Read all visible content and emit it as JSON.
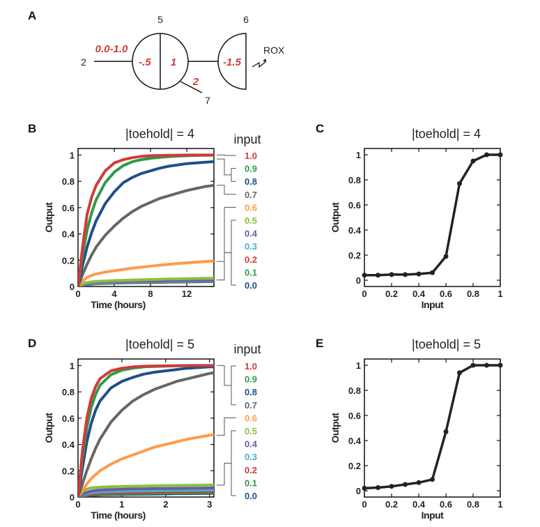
{
  "panels": {
    "A": "A",
    "B": "B",
    "C": "C",
    "D": "D",
    "E": "E"
  },
  "diagram": {
    "node_5": "5",
    "node_6": "6",
    "node_2": "2",
    "node_7": "7",
    "input_range": "0.0-1.0",
    "left_half": "-.5",
    "right_half": "1",
    "branch_weight": "2",
    "threshold": "-1.5",
    "reporter": "ROX"
  },
  "legend": {
    "title": "input",
    "items": [
      {
        "label": "1.0",
        "color": "#d23a3a"
      },
      {
        "label": "0.9",
        "color": "#2e9a4a"
      },
      {
        "label": "0.8",
        "color": "#1f4e8c"
      },
      {
        "label": "0.7",
        "color": "#666666"
      },
      {
        "label": "0.6",
        "color": "#ff9a4a"
      },
      {
        "label": "0.5",
        "color": "#8cbf3f"
      },
      {
        "label": "0.4",
        "color": "#6a5aa8"
      },
      {
        "label": "0.3",
        "color": "#3fb3c9"
      },
      {
        "label": "0.2",
        "color": "#d23a3a"
      },
      {
        "label": "0.1",
        "color": "#2e9a4a"
      },
      {
        "label": "0.0",
        "color": "#1f4e8c"
      }
    ]
  },
  "chart_data": [
    {
      "id": "B",
      "type": "line",
      "title": "|toehold| = 4",
      "xlabel": "Time (hours)",
      "ylabel": "Output",
      "xlim": [
        0,
        15
      ],
      "ylim": [
        0,
        1.05
      ],
      "xticks": [
        0,
        4,
        8,
        12
      ],
      "xtick_labels": [
        "0",
        "4",
        "8",
        "12"
      ],
      "yticks": [
        0,
        0.2,
        0.4,
        0.6,
        0.8,
        1
      ],
      "ytick_labels": [
        "0",
        "0.2",
        "0.4",
        "0.6",
        "0.8",
        "1"
      ],
      "x": [
        0,
        0.5,
        1,
        1.5,
        2,
        3,
        4,
        5,
        6,
        7,
        8,
        9,
        10,
        11,
        12,
        13,
        14,
        15
      ],
      "series": [
        {
          "name": "1.0",
          "color": "#d23a3a",
          "values": [
            0,
            0.3,
            0.55,
            0.68,
            0.77,
            0.88,
            0.94,
            0.965,
            0.98,
            0.99,
            0.995,
            0.997,
            0.998,
            0.999,
            1.0,
            1.0,
            1.0,
            1.0
          ]
        },
        {
          "name": "0.9",
          "color": "#2e9a4a",
          "values": [
            0,
            0.24,
            0.43,
            0.56,
            0.66,
            0.79,
            0.87,
            0.92,
            0.95,
            0.965,
            0.975,
            0.982,
            0.988,
            0.992,
            0.995,
            0.997,
            0.998,
            0.999
          ]
        },
        {
          "name": "0.8",
          "color": "#1f4e8c",
          "values": [
            0,
            0.16,
            0.3,
            0.41,
            0.5,
            0.63,
            0.72,
            0.79,
            0.83,
            0.86,
            0.88,
            0.9,
            0.915,
            0.925,
            0.935,
            0.94,
            0.945,
            0.95
          ]
        },
        {
          "name": "0.7",
          "color": "#666666",
          "values": [
            0,
            0.09,
            0.17,
            0.24,
            0.3,
            0.39,
            0.46,
            0.52,
            0.57,
            0.61,
            0.64,
            0.67,
            0.69,
            0.71,
            0.73,
            0.745,
            0.76,
            0.77
          ]
        },
        {
          "name": "0.6",
          "color": "#ff9a4a",
          "values": [
            0,
            0.04,
            0.07,
            0.085,
            0.095,
            0.11,
            0.12,
            0.13,
            0.14,
            0.147,
            0.155,
            0.162,
            0.168,
            0.175,
            0.18,
            0.185,
            0.19,
            0.195
          ]
        },
        {
          "name": "0.5",
          "color": "#8cbf3f",
          "values": [
            0,
            0.02,
            0.03,
            0.035,
            0.038,
            0.042,
            0.045,
            0.047,
            0.049,
            0.051,
            0.053,
            0.055,
            0.057,
            0.058,
            0.06,
            0.061,
            0.062,
            0.063
          ]
        },
        {
          "name": "0.4",
          "color": "#6a5aa8",
          "values": [
            0,
            0.015,
            0.025,
            0.03,
            0.033,
            0.036,
            0.038,
            0.04,
            0.041,
            0.042,
            0.043,
            0.044,
            0.045,
            0.046,
            0.047,
            0.048,
            0.049,
            0.05
          ]
        },
        {
          "name": "0.3",
          "color": "#3fb3c9",
          "values": [
            0,
            0.012,
            0.02,
            0.025,
            0.028,
            0.031,
            0.033,
            0.035,
            0.036,
            0.037,
            0.038,
            0.039,
            0.04,
            0.041,
            0.042,
            0.043,
            0.044,
            0.045
          ]
        },
        {
          "name": "0.2",
          "color": "#d23a3a",
          "values": [
            0,
            0.01,
            0.018,
            0.022,
            0.025,
            0.028,
            0.03,
            0.032,
            0.033,
            0.034,
            0.035,
            0.036,
            0.037,
            0.038,
            0.039,
            0.04,
            0.041,
            0.042
          ]
        },
        {
          "name": "0.1",
          "color": "#2e9a4a",
          "values": [
            0,
            0.01,
            0.016,
            0.02,
            0.023,
            0.026,
            0.028,
            0.03,
            0.031,
            0.032,
            0.033,
            0.034,
            0.035,
            0.036,
            0.037,
            0.038,
            0.039,
            0.04
          ]
        },
        {
          "name": "0.0",
          "color": "#1f4e8c",
          "values": [
            0,
            0.008,
            0.014,
            0.018,
            0.021,
            0.024,
            0.026,
            0.028,
            0.029,
            0.03,
            0.031,
            0.032,
            0.033,
            0.034,
            0.035,
            0.036,
            0.037,
            0.038
          ]
        }
      ]
    },
    {
      "id": "C",
      "type": "line",
      "title": "|toehold| = 4",
      "xlabel": "Input",
      "ylabel": "Output",
      "xlim": [
        0,
        1
      ],
      "ylim": [
        -0.05,
        1.05
      ],
      "xticks": [
        0,
        0.2,
        0.4,
        0.6,
        0.8,
        1
      ],
      "xtick_labels": [
        "0",
        "0.2",
        "0.4",
        "0.6",
        "0.8",
        "1"
      ],
      "yticks": [
        0,
        0.2,
        0.4,
        0.6,
        0.8,
        1
      ],
      "ytick_labels": [
        "0",
        "0.2",
        "0.4",
        "0.6",
        "0.8",
        "1"
      ],
      "x": [
        0,
        0.1,
        0.2,
        0.3,
        0.4,
        0.5,
        0.6,
        0.7,
        0.8,
        0.9,
        1.0
      ],
      "values": [
        0.04,
        0.04,
        0.045,
        0.045,
        0.05,
        0.06,
        0.19,
        0.77,
        0.95,
        1.0,
        1.0
      ]
    },
    {
      "id": "D",
      "type": "line",
      "title": "|toehold| = 5",
      "xlabel": "Time (hours)",
      "ylabel": "Output",
      "xlim": [
        0,
        3.1
      ],
      "ylim": [
        0,
        1.05
      ],
      "xticks": [
        0,
        1,
        2,
        3
      ],
      "xtick_labels": [
        "0",
        "1",
        "2",
        "3"
      ],
      "yticks": [
        0,
        0.2,
        0.4,
        0.6,
        0.8,
        1
      ],
      "ytick_labels": [
        "0",
        "0.2",
        "0.4",
        "0.6",
        "0.8",
        "1"
      ],
      "x": [
        0,
        0.1,
        0.2,
        0.3,
        0.4,
        0.5,
        0.75,
        1,
        1.25,
        1.5,
        1.75,
        2,
        2.25,
        2.5,
        2.75,
        3,
        3.1
      ],
      "series": [
        {
          "name": "1.0",
          "color": "#d23a3a",
          "values": [
            0,
            0.35,
            0.6,
            0.75,
            0.84,
            0.9,
            0.96,
            0.98,
            0.99,
            0.995,
            0.997,
            0.998,
            0.999,
            1.0,
            1.0,
            1.0,
            1.0
          ]
        },
        {
          "name": "0.9",
          "color": "#2e9a4a",
          "values": [
            0,
            0.3,
            0.53,
            0.68,
            0.78,
            0.85,
            0.93,
            0.965,
            0.98,
            0.99,
            0.994,
            0.996,
            0.998,
            0.999,
            1.0,
            1.0,
            1.0
          ]
        },
        {
          "name": "0.8",
          "color": "#1f4e8c",
          "values": [
            0,
            0.22,
            0.42,
            0.56,
            0.66,
            0.73,
            0.83,
            0.88,
            0.91,
            0.935,
            0.95,
            0.96,
            0.97,
            0.98,
            0.985,
            0.99,
            0.99
          ]
        },
        {
          "name": "0.7",
          "color": "#666666",
          "values": [
            0,
            0.1,
            0.2,
            0.29,
            0.37,
            0.44,
            0.57,
            0.66,
            0.73,
            0.78,
            0.82,
            0.85,
            0.88,
            0.9,
            0.92,
            0.94,
            0.945
          ]
        },
        {
          "name": "0.6",
          "color": "#ff9a4a",
          "values": [
            0,
            0.05,
            0.1,
            0.14,
            0.17,
            0.2,
            0.25,
            0.29,
            0.32,
            0.35,
            0.38,
            0.4,
            0.42,
            0.44,
            0.455,
            0.47,
            0.475
          ]
        },
        {
          "name": "0.5",
          "color": "#8cbf3f",
          "values": [
            0,
            0.04,
            0.06,
            0.07,
            0.073,
            0.075,
            0.078,
            0.08,
            0.082,
            0.084,
            0.085,
            0.087,
            0.088,
            0.089,
            0.09,
            0.091,
            0.092
          ]
        },
        {
          "name": "0.4",
          "color": "#6a5aa8",
          "values": [
            0,
            0.02,
            0.035,
            0.045,
            0.05,
            0.053,
            0.057,
            0.06,
            0.062,
            0.063,
            0.064,
            0.065,
            0.066,
            0.067,
            0.068,
            0.069,
            0.07
          ]
        },
        {
          "name": "0.3",
          "color": "#3fb3c9",
          "values": [
            0,
            0.015,
            0.025,
            0.032,
            0.036,
            0.039,
            0.042,
            0.044,
            0.046,
            0.047,
            0.048,
            0.049,
            0.05,
            0.051,
            0.052,
            0.053,
            0.054
          ]
        },
        {
          "name": "0.2",
          "color": "#d23a3a",
          "values": [
            0,
            0.01,
            0.018,
            0.023,
            0.026,
            0.028,
            0.031,
            0.033,
            0.035,
            0.036,
            0.037,
            0.038,
            0.039,
            0.04,
            0.041,
            0.042,
            0.043
          ]
        },
        {
          "name": "0.1",
          "color": "#2e9a4a",
          "values": [
            0,
            0.008,
            0.014,
            0.018,
            0.02,
            0.022,
            0.024,
            0.026,
            0.027,
            0.028,
            0.029,
            0.03,
            0.031,
            0.032,
            0.033,
            0.034,
            0.035
          ]
        },
        {
          "name": "0.0",
          "color": "#1f4e8c",
          "values": [
            0,
            0.006,
            0.01,
            0.013,
            0.015,
            0.017,
            0.019,
            0.02,
            0.021,
            0.022,
            0.023,
            0.024,
            0.025,
            0.026,
            0.027,
            0.028,
            0.028
          ]
        }
      ]
    },
    {
      "id": "E",
      "type": "line",
      "title": "|toehold| = 5",
      "xlabel": "Input",
      "ylabel": "Output",
      "xlim": [
        0,
        1
      ],
      "ylim": [
        -0.05,
        1.05
      ],
      "xticks": [
        0,
        0.2,
        0.4,
        0.6,
        0.8,
        1
      ],
      "xtick_labels": [
        "0",
        "0.2",
        "0.4",
        "0.6",
        "0.8",
        "1"
      ],
      "yticks": [
        0,
        0.2,
        0.4,
        0.6,
        0.8,
        1
      ],
      "ytick_labels": [
        "0",
        "0.2",
        "0.4",
        "0.6",
        "0.8",
        "1"
      ],
      "x": [
        0,
        0.1,
        0.2,
        0.3,
        0.4,
        0.5,
        0.6,
        0.7,
        0.8,
        0.9,
        1.0
      ],
      "values": [
        0.02,
        0.025,
        0.035,
        0.05,
        0.065,
        0.09,
        0.47,
        0.94,
        1.0,
        1.0,
        1.0
      ]
    }
  ]
}
